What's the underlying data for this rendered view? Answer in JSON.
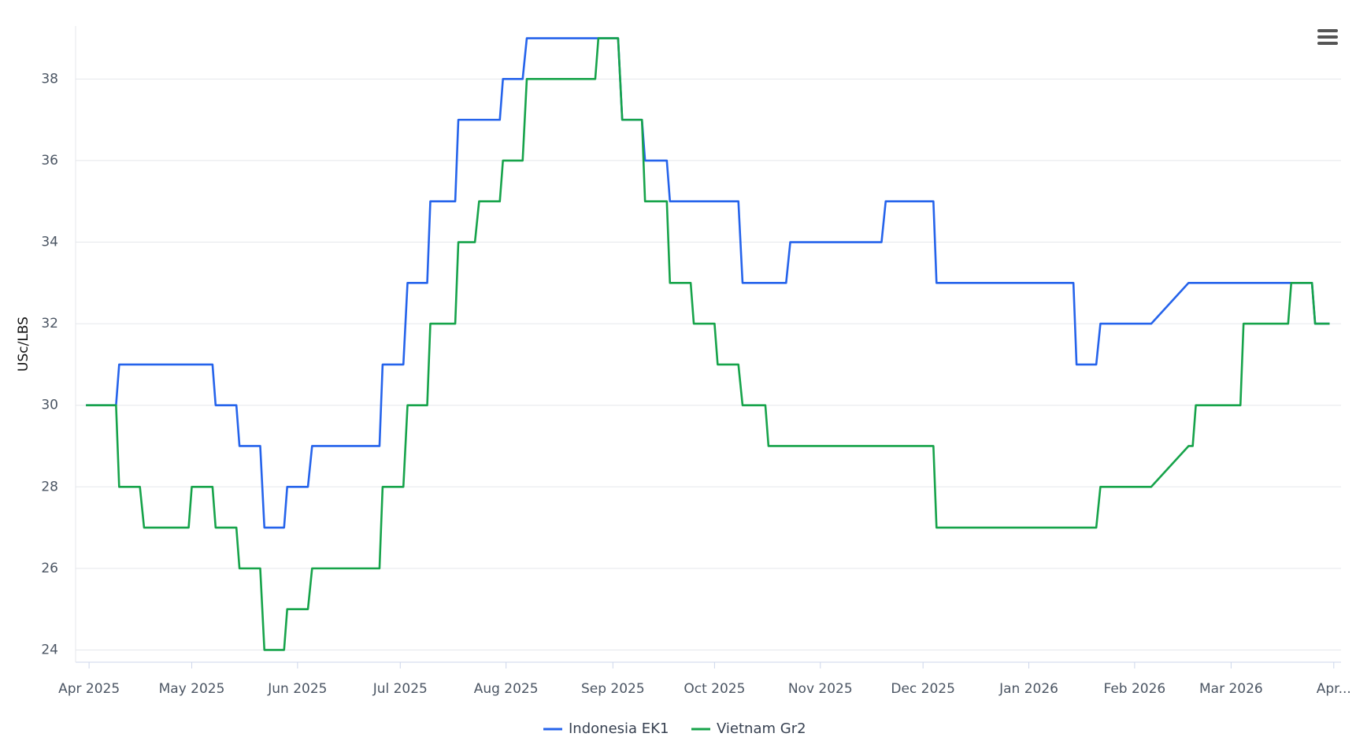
{
  "chart_data": {
    "type": "line",
    "y_label": "USc/LBS",
    "xlim": [
      -0.13,
      12.07
    ],
    "ylim": [
      23.7,
      39.3
    ],
    "xticks": [
      {
        "value": 0,
        "label": "Apr 2025"
      },
      {
        "value": 0.99,
        "label": "May 2025"
      },
      {
        "value": 2.01,
        "label": "Jun 2025"
      },
      {
        "value": 3.0,
        "label": "Jul 2025"
      },
      {
        "value": 4.02,
        "label": "Aug 2025"
      },
      {
        "value": 5.05,
        "label": "Sep 2025"
      },
      {
        "value": 6.03,
        "label": "Oct 2025"
      },
      {
        "value": 7.05,
        "label": "Nov 2025"
      },
      {
        "value": 8.04,
        "label": "Dec 2025"
      },
      {
        "value": 9.06,
        "label": "Jan 2026"
      },
      {
        "value": 10.08,
        "label": "Feb 2026"
      },
      {
        "value": 11.01,
        "label": "Mar 2026"
      },
      {
        "value": 12.0,
        "label": "Apr..."
      }
    ],
    "yticks": [
      24,
      26,
      28,
      30,
      32,
      34,
      36,
      38
    ],
    "grid": true,
    "series": [
      {
        "name": "Indonesia EK1",
        "color": "#2563eb",
        "x": [
          -0.03,
          0.26,
          0.29,
          1.19,
          1.22,
          1.42,
          1.45,
          1.65,
          1.69,
          1.88,
          1.91,
          2.11,
          2.15,
          2.8,
          2.83,
          3.03,
          3.07,
          3.26,
          3.29,
          3.53,
          3.56,
          3.96,
          3.99,
          4.18,
          4.22,
          5.1,
          5.14,
          5.33,
          5.36,
          5.57,
          5.6,
          6.26,
          6.3,
          6.72,
          6.76,
          7.64,
          7.68,
          8.14,
          8.17,
          9.49,
          9.52,
          9.71,
          9.75,
          10.24,
          10.6,
          11.79,
          11.82,
          11.96
        ],
        "values": [
          30,
          30,
          31,
          31,
          30,
          30,
          29,
          29,
          27,
          27,
          28,
          28,
          29,
          29,
          31,
          31,
          33,
          33,
          35,
          35,
          37,
          37,
          38,
          38,
          39,
          39,
          37,
          37,
          36,
          36,
          35,
          35,
          33,
          33,
          34,
          34,
          35,
          35,
          33,
          33,
          31,
          31,
          32,
          32,
          33,
          33,
          32,
          32
        ]
      },
      {
        "name": "Vietnam Gr2",
        "color": "#16a34a",
        "x": [
          -0.03,
          0.26,
          0.29,
          0.49,
          0.53,
          0.96,
          0.99,
          1.19,
          1.22,
          1.42,
          1.45,
          1.65,
          1.69,
          1.88,
          1.91,
          2.11,
          2.15,
          2.8,
          2.83,
          3.03,
          3.07,
          3.26,
          3.29,
          3.53,
          3.56,
          3.72,
          3.76,
          3.96,
          3.99,
          4.18,
          4.22,
          4.88,
          4.91,
          5.1,
          5.14,
          5.33,
          5.36,
          5.57,
          5.6,
          5.8,
          5.83,
          6.03,
          6.06,
          6.26,
          6.3,
          6.52,
          6.55,
          8.14,
          8.17,
          9.71,
          9.75,
          10.24,
          10.6,
          10.64,
          10.67,
          11.1,
          11.13,
          11.56,
          11.59,
          11.79,
          11.82,
          11.96
        ],
        "values": [
          30,
          30,
          28,
          28,
          27,
          27,
          28,
          28,
          27,
          27,
          26,
          26,
          24,
          24,
          25,
          25,
          26,
          26,
          28,
          28,
          30,
          30,
          32,
          32,
          34,
          34,
          35,
          35,
          36,
          36,
          38,
          38,
          39,
          39,
          37,
          37,
          35,
          35,
          33,
          33,
          32,
          32,
          31,
          31,
          30,
          30,
          29,
          29,
          27,
          27,
          28,
          28,
          29,
          29,
          30,
          30,
          32,
          32,
          33,
          33,
          32,
          32
        ]
      }
    ]
  }
}
